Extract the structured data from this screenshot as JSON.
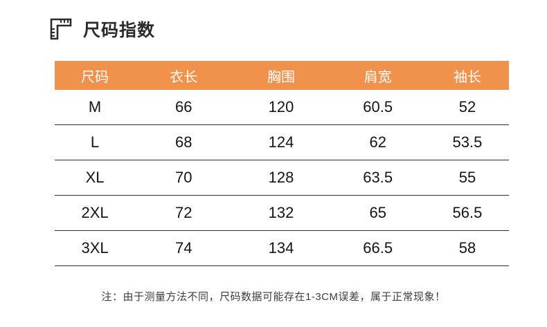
{
  "header": {
    "title": "尺码指数",
    "icon": "ruler-square-icon"
  },
  "colors": {
    "table_header_bg": "#F0914C",
    "table_header_text": "#ffffff",
    "row_divider": "#2e2e2e",
    "title_text": "#2b2b2b",
    "cell_text": "#141414",
    "note_text": "#3d3d3d"
  },
  "table": {
    "columns": [
      "尺码",
      "衣长",
      "胸围",
      "肩宽",
      "袖长"
    ],
    "rows": [
      [
        "M",
        "66",
        "120",
        "60.5",
        "52"
      ],
      [
        "L",
        "68",
        "124",
        "62",
        "53.5"
      ],
      [
        "XL",
        "70",
        "128",
        "63.5",
        "55"
      ],
      [
        "2XL",
        "72",
        "132",
        "65",
        "56.5"
      ],
      [
        "3XL",
        "74",
        "134",
        "66.5",
        "58"
      ]
    ]
  },
  "note": "注：由于测量方法不同，尺码数据可能存在1-3CM误差，属于正常现象！"
}
